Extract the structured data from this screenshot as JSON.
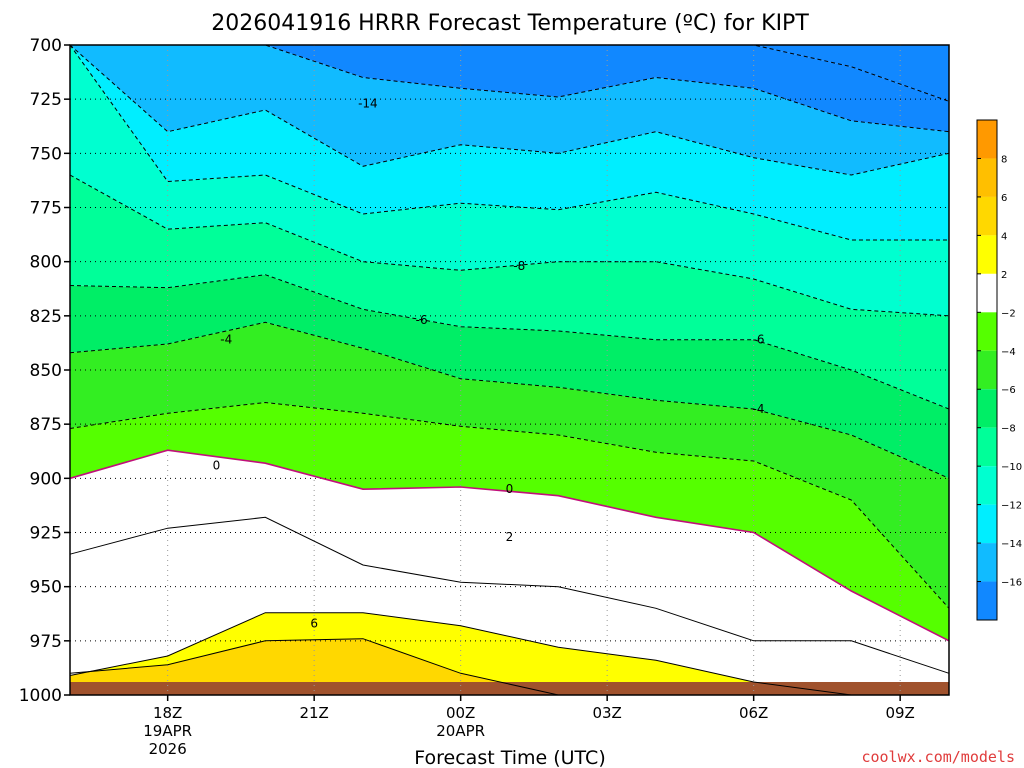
{
  "chart_data": {
    "type": "heatmap",
    "title": "2026041916 HRRR Forecast Temperature (ºC) for KIPT",
    "xlabel": "Forecast Time (UTC)",
    "ylabel": "",
    "ylim": [
      1000,
      700
    ],
    "y_ticks": [
      "700",
      "725",
      "750",
      "775",
      "800",
      "825",
      "850",
      "875",
      "900",
      "925",
      "950",
      "975",
      "1000"
    ],
    "y_values": [
      700,
      725,
      750,
      775,
      800,
      825,
      850,
      875,
      900,
      925,
      950,
      975,
      1000
    ],
    "x_range_hours": [
      16,
      34
    ],
    "x_ticks": [
      {
        "hour": 18,
        "label": "18Z",
        "date": "19APR",
        "year": "2026"
      },
      {
        "hour": 21,
        "label": "21Z",
        "date": "",
        "year": ""
      },
      {
        "hour": 24,
        "label": "00Z",
        "date": "20APR",
        "year": ""
      },
      {
        "hour": 27,
        "label": "03Z",
        "date": "",
        "year": ""
      },
      {
        "hour": 30,
        "label": "06Z",
        "date": "",
        "year": ""
      },
      {
        "hour": 33,
        "label": "09Z",
        "date": "",
        "year": ""
      }
    ],
    "fill_levels": [
      {
        "lo": 6,
        "hi": 8,
        "color": "#ffbf00"
      },
      {
        "lo": 4,
        "hi": 6,
        "color": "#ffd800"
      },
      {
        "lo": 2,
        "hi": 4,
        "color": "#ffff00"
      },
      {
        "lo": -2,
        "hi": 2,
        "color": "#ffffff"
      },
      {
        "lo": -4,
        "hi": -2,
        "color": "#55ff00"
      },
      {
        "lo": -6,
        "hi": -4,
        "color": "#33ee22"
      },
      {
        "lo": -8,
        "hi": -6,
        "color": "#00ee66"
      },
      {
        "lo": -10,
        "hi": -8,
        "color": "#00ff99"
      },
      {
        "lo": -12,
        "hi": -10,
        "color": "#00ffd0"
      },
      {
        "lo": -14,
        "hi": -12,
        "color": "#00eeff"
      },
      {
        "lo": -16,
        "hi": -14,
        "color": "#11bbff"
      },
      {
        "lo": -18,
        "hi": -16,
        "color": "#1188ff"
      }
    ],
    "ground_color": "#a0522d",
    "contour_labels": [
      {
        "text": "-14",
        "hour": 22.1,
        "p": 727
      },
      {
        "text": "-8",
        "hour": 25.2,
        "p": 802
      },
      {
        "text": "-6",
        "hour": 23.2,
        "p": 827
      },
      {
        "text": "-4",
        "hour": 19.2,
        "p": 836
      },
      {
        "text": "-6",
        "hour": 30.1,
        "p": 836
      },
      {
        "text": "-4",
        "hour": 30.1,
        "p": 868
      },
      {
        "text": "0",
        "hour": 19.0,
        "p": 894
      },
      {
        "text": "0",
        "hour": 25.0,
        "p": 905
      },
      {
        "text": "2",
        "hour": 25.0,
        "p": 927
      },
      {
        "text": "6",
        "hour": 21.0,
        "p": 967
      }
    ],
    "colorbar": {
      "labels": [
        "8",
        "6",
        "4",
        "2",
        "−2",
        "−4",
        "−6",
        "−8",
        "−10",
        "−12",
        "−14",
        "−16"
      ],
      "colors": [
        "#ff9900",
        "#ffbf00",
        "#ffd800",
        "#ffff00",
        "#ffffff",
        "#55ff00",
        "#33ee22",
        "#00ee66",
        "#00ff99",
        "#00ffd0",
        "#00eeff",
        "#11bbff",
        "#1188ff"
      ]
    }
  },
  "credit": {
    "text": "coolwx.com/models",
    "color": "#e03c3c"
  }
}
